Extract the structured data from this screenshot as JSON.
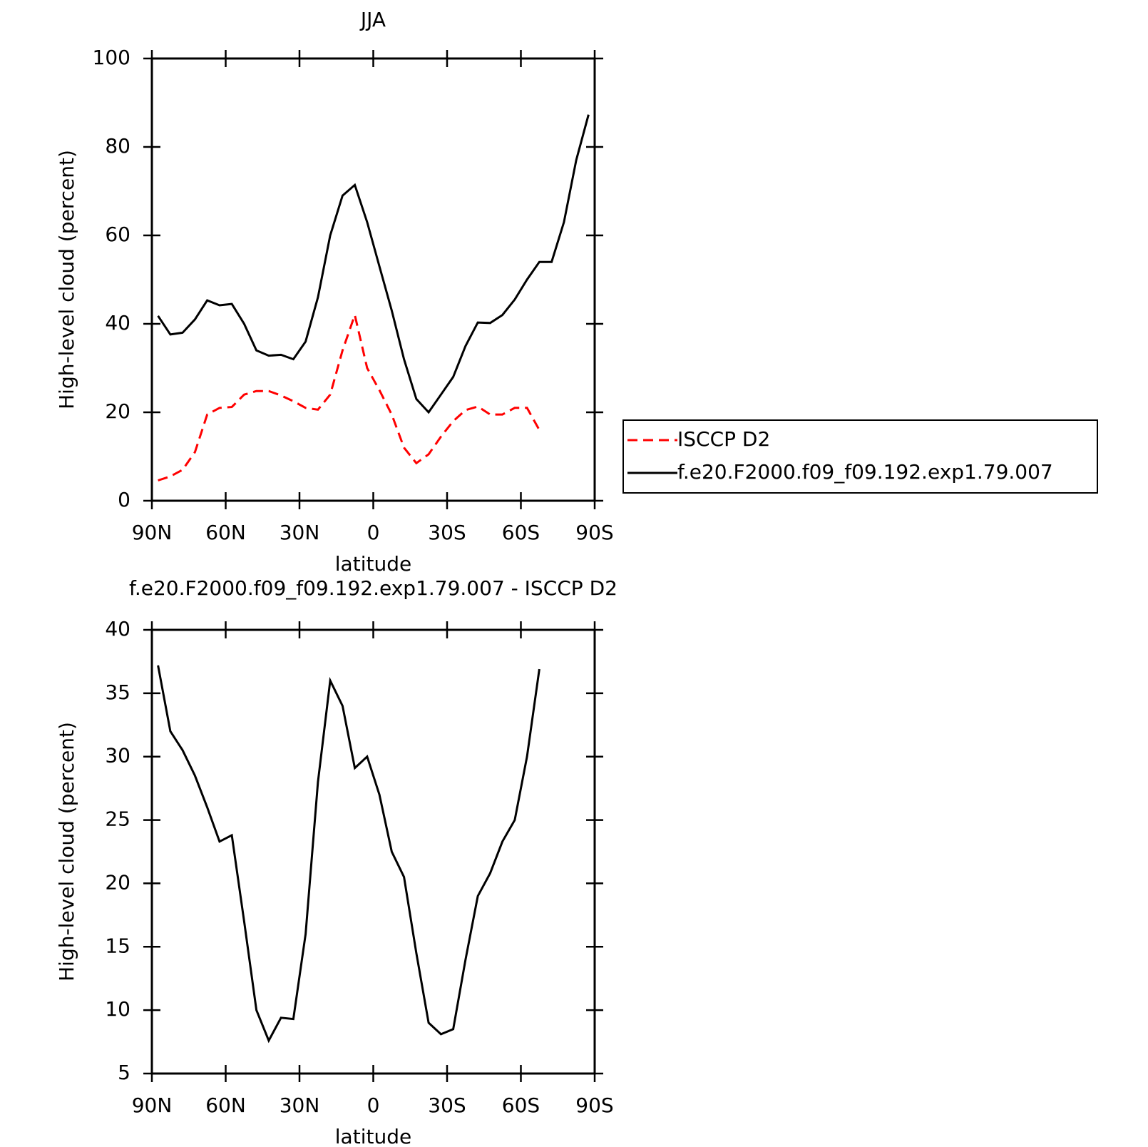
{
  "chart_data": [
    {
      "type": "line",
      "title": "JJA",
      "x_label": "latitude",
      "y_label": "High-level cloud (percent)",
      "x": [
        87.5,
        82.5,
        77.5,
        72.5,
        67.5,
        62.5,
        57.5,
        52.5,
        47.5,
        42.5,
        37.5,
        32.5,
        27.5,
        22.5,
        17.5,
        12.5,
        7.5,
        2.5,
        -2.5,
        -7.5,
        -12.5,
        -17.5,
        -22.5,
        -27.5,
        -32.5,
        -37.5,
        -42.5,
        -47.5,
        -52.5,
        -57.5,
        -62.5,
        -67.5,
        -72.5,
        -77.5,
        -82.5,
        -87.5
      ],
      "series": [
        {
          "name": "ISCCP D2",
          "color": "#ff0000",
          "linestyle": "dashed",
          "values": [
            4.6,
            5.5,
            7,
            11,
            19.5,
            21,
            21.2,
            24,
            24.8,
            24.8,
            23.8,
            22.5,
            21,
            20.6,
            24,
            34,
            42,
            30,
            25,
            19.5,
            12,
            8.5,
            10.5,
            14.5,
            18,
            20.5,
            21.3,
            19.5,
            19.5,
            21,
            21,
            16,
            null,
            null,
            null,
            null
          ]
        },
        {
          "name": "f.e20.F2000.f09_f09.192.exp1.79.007",
          "color": "#000000",
          "linestyle": "solid",
          "values": [
            41.8,
            37.6,
            38,
            41,
            45.3,
            44.2,
            44.5,
            40,
            34,
            32.8,
            33,
            32,
            36,
            46,
            60,
            69,
            71.4,
            63,
            53,
            43,
            32,
            23,
            20,
            24,
            28,
            35,
            40.3,
            40.2,
            42,
            45.5,
            50,
            54,
            54,
            63,
            77,
            87.3
          ]
        }
      ],
      "xlim": [
        90,
        -90
      ],
      "xticks": [
        {
          "value": 90,
          "label": "90N"
        },
        {
          "value": 60,
          "label": "60N"
        },
        {
          "value": 30,
          "label": "30N"
        },
        0,
        {
          "value": -30,
          "label": "30S"
        },
        {
          "value": -60,
          "label": "60S"
        },
        {
          "value": -90,
          "label": "90S"
        }
      ],
      "ylim": [
        0,
        100
      ],
      "yticks": [
        0,
        20,
        40,
        60,
        80,
        100
      ],
      "legend": "right"
    },
    {
      "type": "line",
      "title": "f.e20.F2000.f09_f09.192.exp1.79.007 - ISCCP D2",
      "x_label": "latitude",
      "y_label": "High-level cloud (percent)",
      "x": [
        87.5,
        82.5,
        77.5,
        72.5,
        67.5,
        62.5,
        57.5,
        52.5,
        47.5,
        42.5,
        37.5,
        32.5,
        27.5,
        22.5,
        17.5,
        12.5,
        7.5,
        2.5,
        -2.5,
        -7.5,
        -12.5,
        -17.5,
        -22.5,
        -27.5,
        -32.5,
        -37.5,
        -42.5,
        -47.5,
        -52.5,
        -57.5,
        -62.5,
        -67.5,
        -72.5,
        -77.5,
        -82.5,
        -87.5
      ],
      "series": [
        {
          "color": "#000000",
          "linestyle": "solid",
          "values": [
            37.2,
            32,
            30.5,
            28.5,
            26,
            23.3,
            23.8,
            17,
            10,
            7.6,
            9.4,
            9.3,
            16,
            28,
            36,
            34,
            29.1,
            30,
            27,
            22.5,
            20.5,
            14.5,
            9,
            8.1,
            8.5,
            14,
            19,
            20.8,
            23.3,
            25,
            30,
            36.9,
            null,
            null,
            null,
            null
          ]
        }
      ],
      "xlim": [
        90,
        -90
      ],
      "xticks": [
        {
          "value": 90,
          "label": "90N"
        },
        {
          "value": 60,
          "label": "60N"
        },
        {
          "value": 30,
          "label": "30N"
        },
        0,
        {
          "value": -30,
          "label": "30S"
        },
        {
          "value": -60,
          "label": "60S"
        },
        {
          "value": -90,
          "label": "90S"
        }
      ],
      "ylim": [
        5,
        40
      ],
      "yticks": [
        5,
        10,
        15,
        20,
        25,
        30,
        35,
        40
      ]
    }
  ]
}
